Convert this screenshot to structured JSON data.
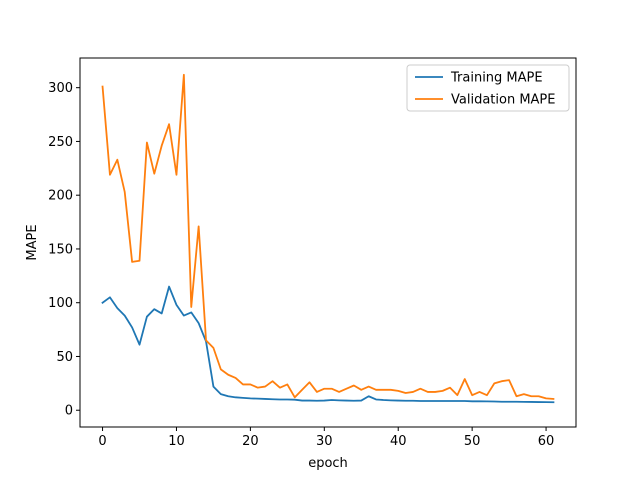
{
  "chart_data": {
    "type": "line",
    "title": "",
    "xlabel": "epoch",
    "ylabel": "MAPE",
    "xlim": [
      -3.05,
      64.05
    ],
    "ylim": [
      -15.6,
      327.6
    ],
    "xticks": [
      0,
      10,
      20,
      30,
      40,
      50,
      60
    ],
    "yticks": [
      0,
      50,
      100,
      150,
      200,
      250,
      300
    ],
    "grid": false,
    "legend_position": "top-right",
    "colors": {
      "training": "#1f77b4",
      "validation": "#ff7f0e",
      "axes": "#000000"
    },
    "series": [
      {
        "name": "Training MAPE",
        "color": "#1f77b4",
        "x": [
          0,
          1,
          2,
          3,
          4,
          5,
          6,
          7,
          8,
          9,
          10,
          11,
          12,
          13,
          14,
          15,
          16,
          17,
          18,
          19,
          20,
          21,
          22,
          23,
          24,
          25,
          26,
          27,
          28,
          29,
          30,
          31,
          32,
          33,
          34,
          35,
          36,
          37,
          38,
          39,
          40,
          41,
          42,
          43,
          44,
          45,
          46,
          47,
          48,
          49,
          50,
          51,
          52,
          53,
          54,
          55,
          56,
          57,
          58,
          59,
          60,
          61
        ],
        "values": [
          100,
          105,
          95,
          88,
          77,
          61,
          87,
          94,
          90,
          115,
          98,
          88,
          91,
          81,
          64,
          22,
          15,
          13,
          12,
          11.5,
          11,
          10.8,
          10.5,
          10.2,
          10,
          10,
          9.8,
          9,
          9,
          8.8,
          9,
          9.5,
          9.2,
          9,
          8.8,
          9,
          13,
          10,
          9.5,
          9.2,
          9,
          8.8,
          8.8,
          8.6,
          8.6,
          8.6,
          8.6,
          8.6,
          8.6,
          8.6,
          8.3,
          8.3,
          8.2,
          8.1,
          7.9,
          7.9,
          7.9,
          7.8,
          7.7,
          7.6,
          7.5,
          7.4
        ]
      },
      {
        "name": "Validation MAPE",
        "color": "#ff7f0e",
        "x": [
          0,
          1,
          2,
          3,
          4,
          5,
          6,
          7,
          8,
          9,
          10,
          11,
          12,
          13,
          14,
          15,
          16,
          17,
          18,
          19,
          20,
          21,
          22,
          23,
          24,
          25,
          26,
          27,
          28,
          29,
          30,
          31,
          32,
          33,
          34,
          35,
          36,
          37,
          38,
          39,
          40,
          41,
          42,
          43,
          44,
          45,
          46,
          47,
          48,
          49,
          50,
          51,
          52,
          53,
          54,
          55,
          56,
          57,
          58,
          59,
          60,
          61
        ],
        "values": [
          301,
          219,
          233,
          203,
          138,
          139,
          249,
          220,
          246,
          266,
          219,
          312,
          96,
          171,
          65,
          58,
          38,
          33,
          30,
          24,
          24,
          21,
          22,
          27,
          21,
          24,
          12,
          19,
          26,
          17,
          20,
          20,
          17,
          20,
          23,
          19,
          22,
          19,
          19,
          19,
          18,
          16,
          17,
          20,
          17,
          17,
          18,
          21,
          14,
          29,
          14,
          17,
          14,
          25,
          27,
          28,
          13,
          15,
          13,
          13,
          11,
          10.5
        ]
      }
    ]
  }
}
